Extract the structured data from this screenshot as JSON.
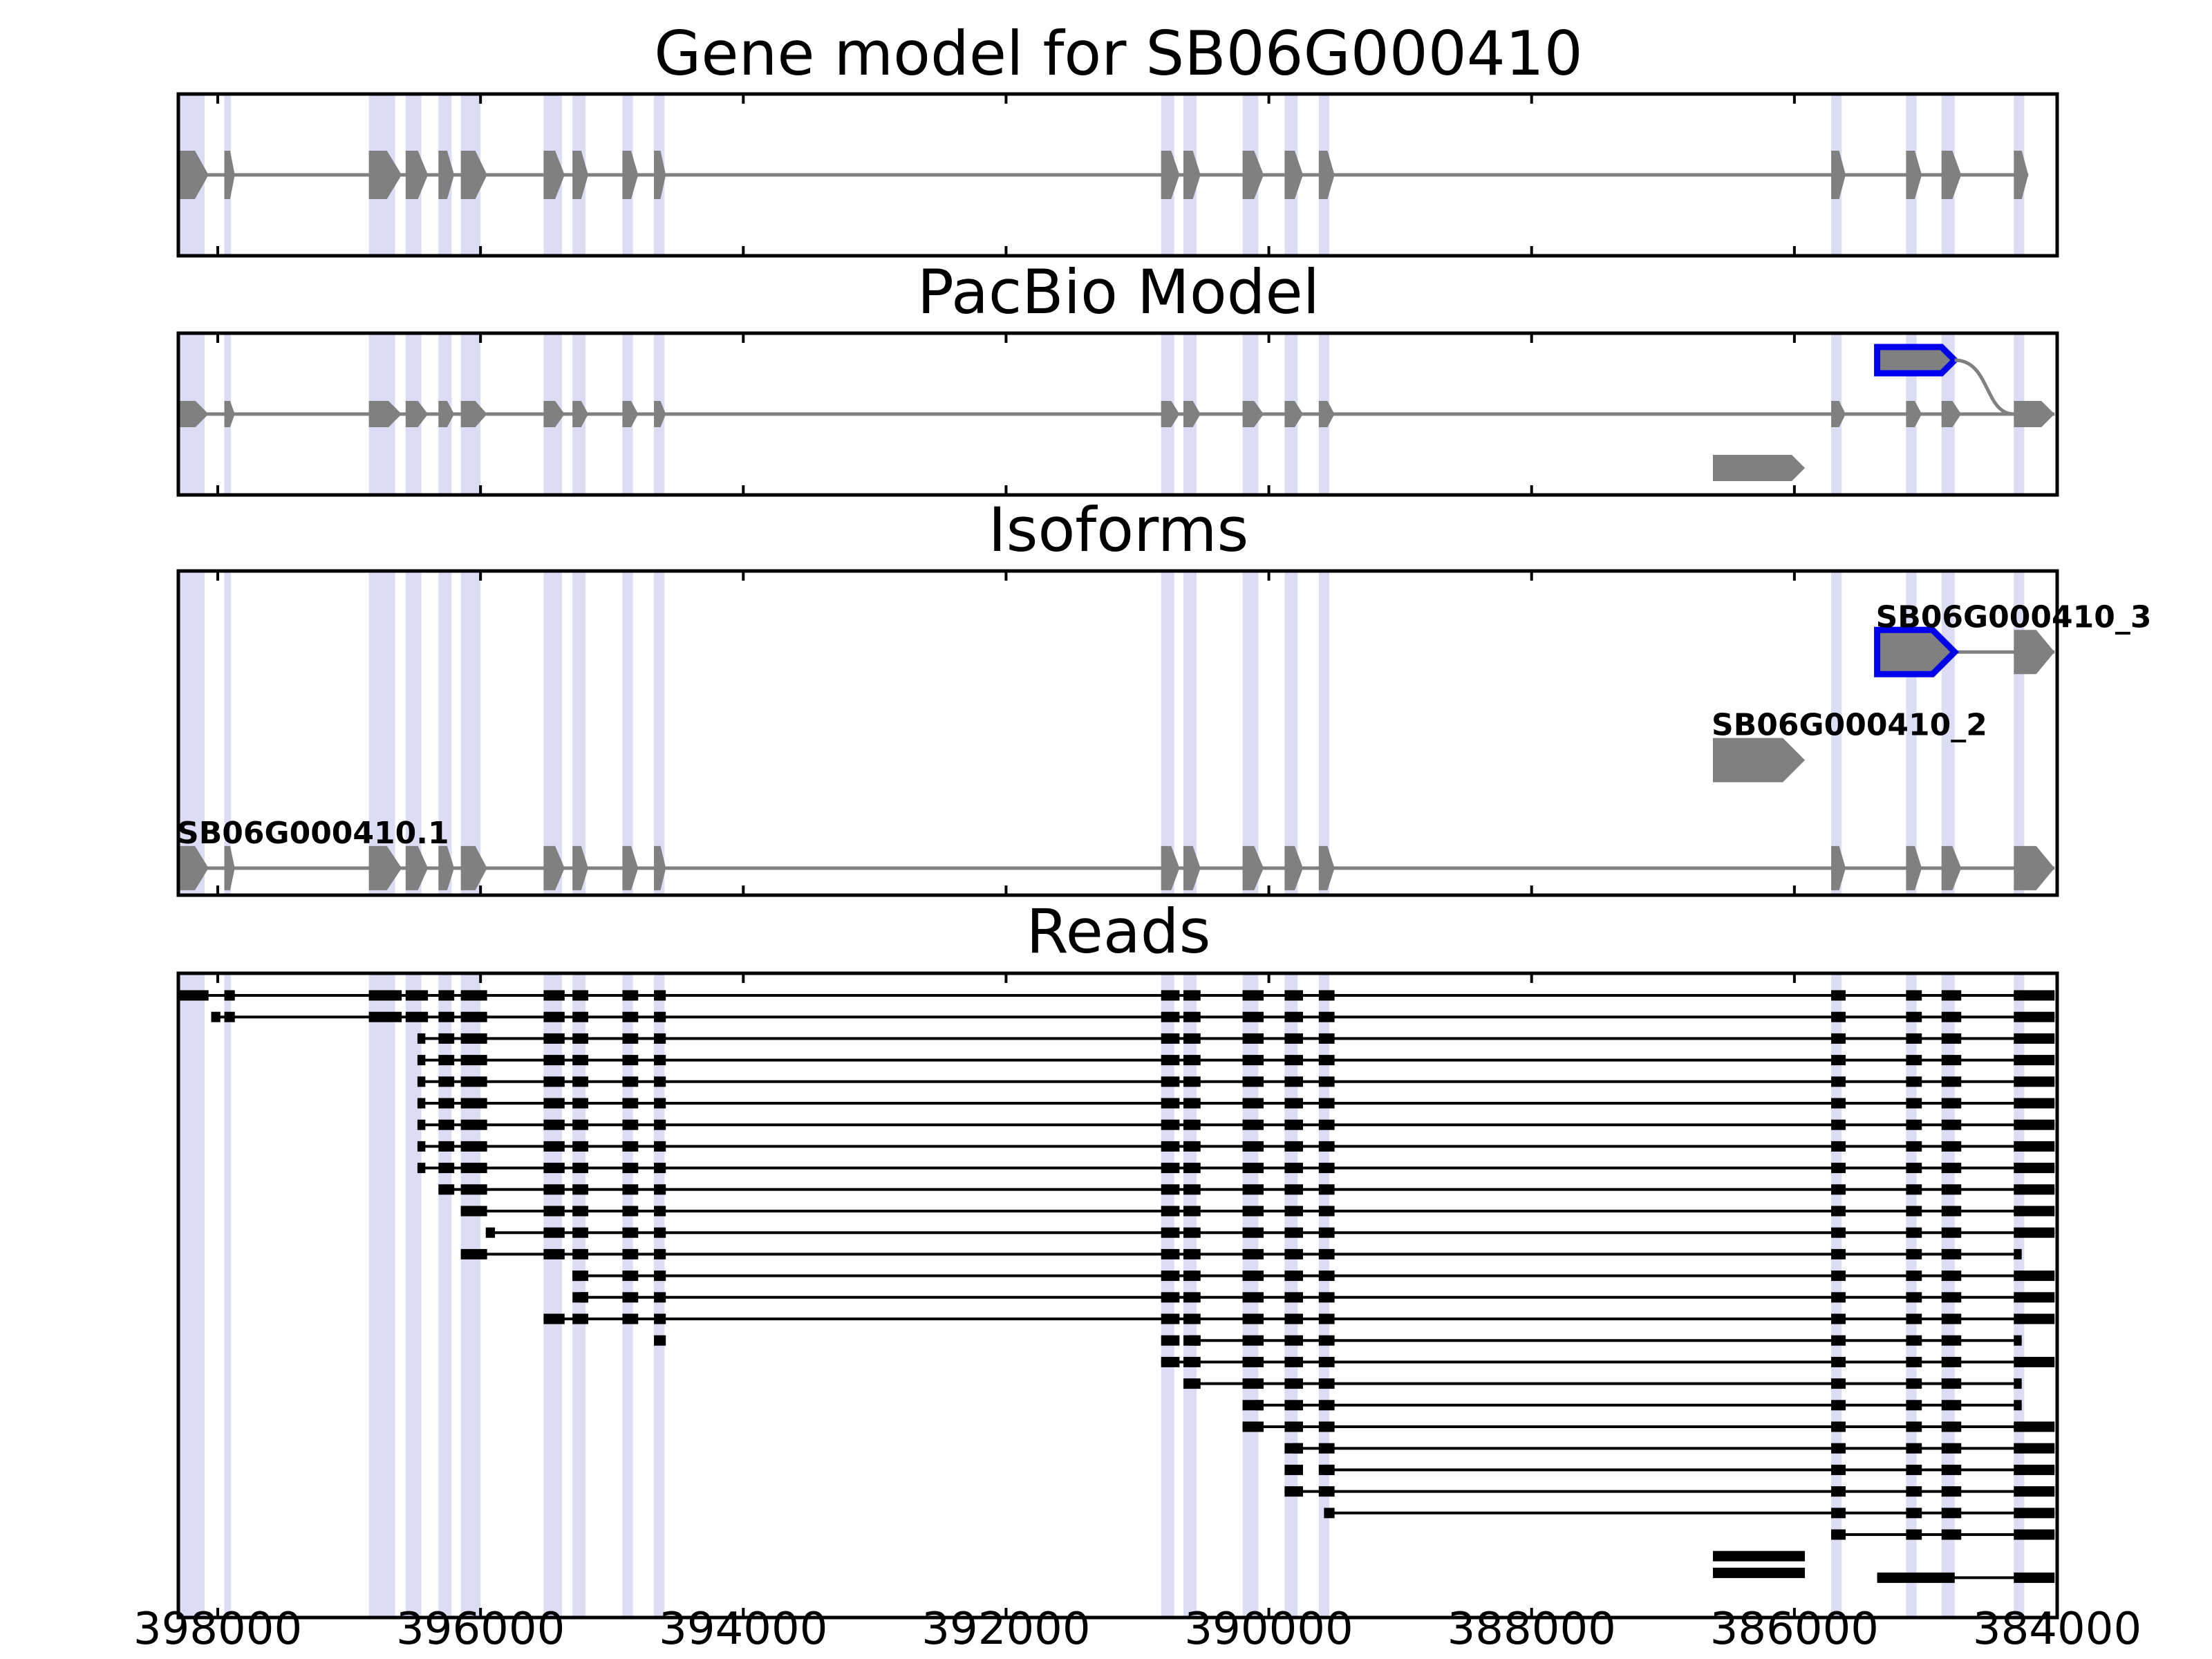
{
  "chart_data": {
    "type": "gene-track",
    "xaxis": {
      "range": [
        398300,
        384000
      ],
      "reversed": true,
      "ticks": [
        398000,
        396000,
        394000,
        392000,
        390000,
        388000,
        386000,
        384000
      ],
      "tick_labels": [
        "398000",
        "396000",
        "394000",
        "392000",
        "390000",
        "388000",
        "386000",
        "384000"
      ]
    },
    "colors": {
      "exon": "#808080",
      "intron": "#808080",
      "highlight": "#dcdcf5",
      "novel_outline": "#0000ee",
      "read": "#000000"
    },
    "highlight_regions": [
      [
        398300,
        398100
      ],
      [
        397950,
        397900
      ],
      [
        396850,
        396650
      ],
      [
        396570,
        396450
      ],
      [
        396320,
        396220
      ],
      [
        396150,
        396000
      ],
      [
        395520,
        395380
      ],
      [
        395300,
        395200
      ],
      [
        394920,
        394840
      ],
      [
        394680,
        394600
      ],
      [
        390820,
        390720
      ],
      [
        390650,
        390550
      ],
      [
        390200,
        390080
      ],
      [
        389880,
        389780
      ],
      [
        389620,
        389540
      ],
      [
        385720,
        385640
      ],
      [
        385150,
        385070
      ],
      [
        384880,
        384780
      ],
      [
        384330,
        384250
      ]
    ],
    "panels": [
      {
        "title": "Gene model for SB06G000410",
        "lanes": 1,
        "tracks": [
          {
            "lane": 0,
            "exons": [
              [
                398300,
                398070
              ],
              [
                397950,
                397870
              ],
              [
                396850,
                396600
              ],
              [
                396570,
                396400
              ],
              [
                396320,
                396200
              ],
              [
                396150,
                395950
              ],
              [
                395520,
                395360
              ],
              [
                395300,
                395180
              ],
              [
                394920,
                394800
              ],
              [
                394680,
                394590
              ],
              [
                390820,
                390680
              ],
              [
                390650,
                390520
              ],
              [
                390200,
                390040
              ],
              [
                389880,
                389740
              ],
              [
                389620,
                389500
              ],
              [
                385720,
                385610
              ],
              [
                385150,
                385030
              ],
              [
                384880,
                384730
              ],
              [
                384330,
                384220
              ]
            ]
          }
        ]
      },
      {
        "title": "PacBio Model",
        "lanes": 3,
        "tracks": [
          {
            "lane": 1,
            "exons": [
              [
                398300,
                398070
              ],
              [
                397950,
                397870
              ],
              [
                396850,
                396600
              ],
              [
                396570,
                396400
              ],
              [
                396320,
                396200
              ],
              [
                396150,
                395950
              ],
              [
                395520,
                395360
              ],
              [
                395300,
                395180
              ],
              [
                394920,
                394800
              ],
              [
                394680,
                394590
              ],
              [
                390820,
                390680
              ],
              [
                390650,
                390520
              ],
              [
                390200,
                390040
              ],
              [
                389880,
                389740
              ],
              [
                389620,
                389500
              ],
              [
                385720,
                385610
              ],
              [
                385150,
                385030
              ],
              [
                384880,
                384730
              ],
              [
                384330,
                384020
              ]
            ]
          },
          {
            "lane": 2,
            "exons": [
              [
                386620,
                385920
              ]
            ]
          },
          {
            "lane": 0,
            "exons": [
              [
                385370,
                384780
              ]
            ],
            "novel": true,
            "join_lane": 1,
            "join_to": 384330
          }
        ]
      },
      {
        "title": "Isoforms",
        "lanes": 6,
        "tracks": [
          {
            "lane": 5,
            "label": "SB06G000410.1",
            "exons": [
              [
                398300,
                398070
              ],
              [
                397950,
                397870
              ],
              [
                396850,
                396600
              ],
              [
                396570,
                396400
              ],
              [
                396320,
                396200
              ],
              [
                396150,
                395950
              ],
              [
                395520,
                395360
              ],
              [
                395300,
                395180
              ],
              [
                394920,
                394800
              ],
              [
                394680,
                394590
              ],
              [
                390820,
                390680
              ],
              [
                390650,
                390520
              ],
              [
                390200,
                390040
              ],
              [
                389880,
                389740
              ],
              [
                389620,
                389500
              ],
              [
                385720,
                385610
              ],
              [
                385150,
                385030
              ],
              [
                384880,
                384730
              ],
              [
                384330,
                384020
              ]
            ]
          },
          {
            "lane": 3,
            "label": "SB06G000410_2",
            "exons": [
              [
                386620,
                385920
              ]
            ]
          },
          {
            "lane": 1,
            "label": "SB06G000410_3",
            "exons": [
              [
                385370,
                384780
              ],
              [
                384330,
                384020
              ]
            ],
            "novel_exons": [
              0
            ]
          }
        ]
      },
      {
        "title": "Reads",
        "read_count": 28
      }
    ]
  }
}
